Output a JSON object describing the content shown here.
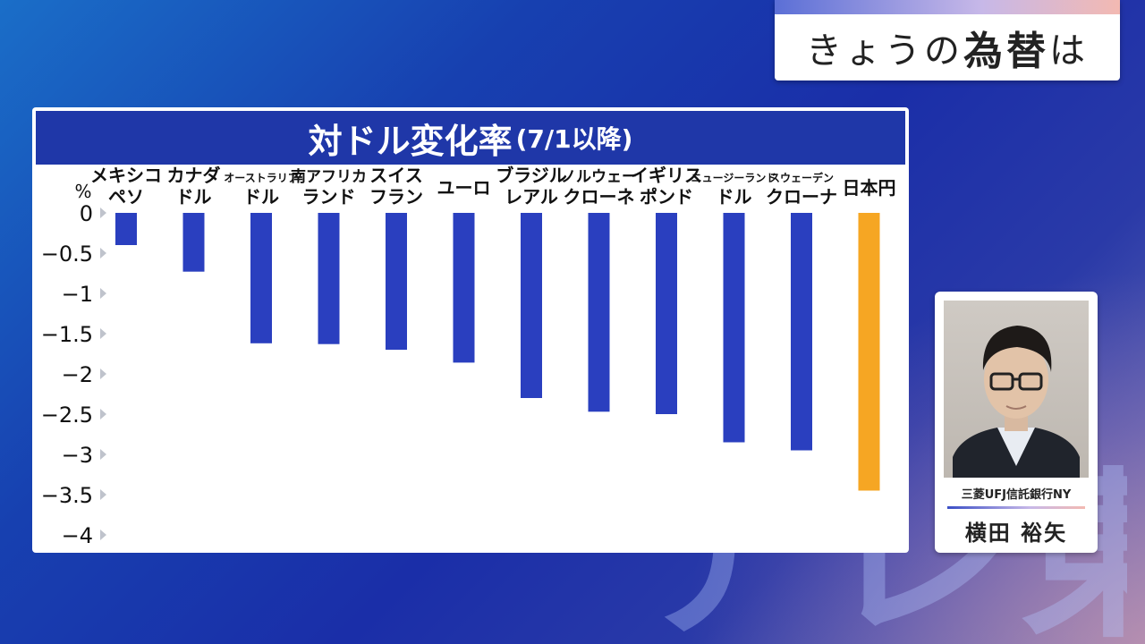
{
  "topic": {
    "prefix": "きょうの",
    "emphasis": "為替",
    "suffix": "は"
  },
  "chart_title": {
    "main": "対ドル変化率",
    "sub": "(7/1以降)"
  },
  "expert": {
    "organization": "三菱UFJ信託銀行NY",
    "name": "横田 裕矢"
  },
  "watermark": "テレ東",
  "colors": {
    "bar": "#2a3fbf",
    "highlight": "#f6a623",
    "header": "#1f37a8"
  },
  "chart_data": {
    "type": "bar",
    "title": "対ドル変化率(7/1以降)",
    "ylabel": "%",
    "ylim": [
      -4,
      0
    ],
    "yticks": [
      "0",
      "−0.5",
      "−1",
      "−1.5",
      "−2",
      "−2.5",
      "−3",
      "−3.5",
      "−4"
    ],
    "categories": [
      [
        "メキシコ",
        "ペソ"
      ],
      [
        "カナダ",
        "ドル"
      ],
      [
        "オーストラリア",
        "ドル"
      ],
      [
        "南アフリカ",
        "ランド"
      ],
      [
        "スイス",
        "フラン"
      ],
      [
        "ユーロ"
      ],
      [
        "ブラジル",
        "レアル"
      ],
      [
        "ノルウェー",
        "クローネ"
      ],
      [
        "イギリス",
        "ポンド"
      ],
      [
        "ニュージーランド",
        "ドル"
      ],
      [
        "スウェーデン",
        "クローナ"
      ],
      [
        "日本円"
      ]
    ],
    "values": [
      -0.4,
      -0.73,
      -1.62,
      -1.63,
      -1.7,
      -1.86,
      -2.3,
      -2.47,
      -2.5,
      -2.85,
      -2.95,
      -3.45
    ],
    "highlight_index": 11,
    "grid": false
  }
}
